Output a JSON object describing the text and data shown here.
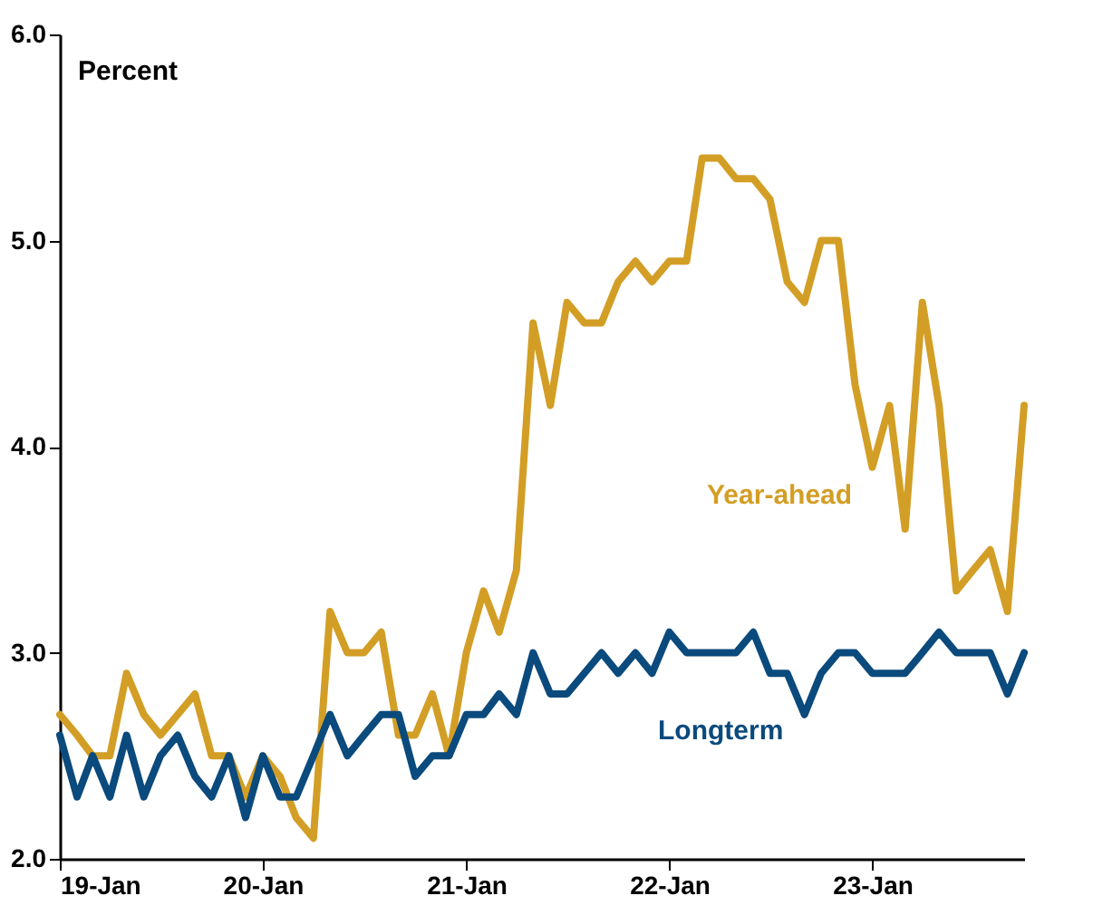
{
  "chart_data": {
    "type": "line",
    "ylabel": "Percent",
    "x": [
      "2019-01",
      "2019-02",
      "2019-03",
      "2019-04",
      "2019-05",
      "2019-06",
      "2019-07",
      "2019-08",
      "2019-09",
      "2019-10",
      "2019-11",
      "2019-12",
      "2020-01",
      "2020-02",
      "2020-03",
      "2020-04",
      "2020-05",
      "2020-06",
      "2020-07",
      "2020-08",
      "2020-09",
      "2020-10",
      "2020-11",
      "2020-12",
      "2021-01",
      "2021-02",
      "2021-03",
      "2021-04",
      "2021-05",
      "2021-06",
      "2021-07",
      "2021-08",
      "2021-09",
      "2021-10",
      "2021-11",
      "2021-12",
      "2022-01",
      "2022-02",
      "2022-03",
      "2022-04",
      "2022-05",
      "2022-06",
      "2022-07",
      "2022-08",
      "2022-09",
      "2022-10",
      "2022-11",
      "2022-12",
      "2023-01",
      "2023-02",
      "2023-03",
      "2023-04",
      "2023-05",
      "2023-06",
      "2023-07",
      "2023-08",
      "2023-09",
      "2023-10"
    ],
    "series": [
      {
        "name": "Year-ahead",
        "color": "#d39e25",
        "values": [
          2.7,
          2.6,
          2.5,
          2.5,
          2.9,
          2.7,
          2.6,
          2.7,
          2.8,
          2.5,
          2.5,
          2.3,
          2.5,
          2.4,
          2.2,
          2.1,
          3.2,
          3.0,
          3.0,
          3.1,
          2.6,
          2.6,
          2.8,
          2.5,
          3.0,
          3.3,
          3.1,
          3.4,
          4.6,
          4.2,
          4.7,
          4.6,
          4.6,
          4.8,
          4.9,
          4.8,
          4.9,
          4.9,
          5.4,
          5.4,
          5.3,
          5.3,
          5.2,
          4.8,
          4.7,
          5.0,
          5.0,
          4.3,
          3.9,
          4.2,
          3.6,
          4.7,
          4.2,
          3.3,
          3.4,
          3.5,
          3.2,
          4.2
        ]
      },
      {
        "name": "Longterm",
        "color": "#0b4a7d",
        "values": [
          2.6,
          2.3,
          2.5,
          2.3,
          2.6,
          2.3,
          2.5,
          2.6,
          2.4,
          2.3,
          2.5,
          2.2,
          2.5,
          2.3,
          2.3,
          2.5,
          2.7,
          2.5,
          2.6,
          2.7,
          2.7,
          2.4,
          2.5,
          2.5,
          2.7,
          2.7,
          2.8,
          2.7,
          3.0,
          2.8,
          2.8,
          2.9,
          3.0,
          2.9,
          3.0,
          2.9,
          3.1,
          3.0,
          3.0,
          3.0,
          3.0,
          3.1,
          2.9,
          2.9,
          2.7,
          2.9,
          3.0,
          3.0,
          2.9,
          2.9,
          2.9,
          3.0,
          3.1,
          3.0,
          3.0,
          3.0,
          2.8,
          3.0
        ]
      }
    ],
    "xlim": [
      "2019-01",
      "2023-10"
    ],
    "xticks": [
      {
        "value": "2019-01",
        "label": "19-Jan"
      },
      {
        "value": "2020-01",
        "label": "20-Jan"
      },
      {
        "value": "2021-01",
        "label": "21-Jan"
      },
      {
        "value": "2022-01",
        "label": "22-Jan"
      },
      {
        "value": "2023-01",
        "label": "23-Jan"
      }
    ],
    "ylim": [
      2.0,
      6.0
    ],
    "yticks": [
      {
        "value": 2.0,
        "label": "2.0"
      },
      {
        "value": 3.0,
        "label": "3.0"
      },
      {
        "value": 4.0,
        "label": "4.0"
      },
      {
        "value": 5.0,
        "label": "5.0"
      },
      {
        "value": 6.0,
        "label": "6.0"
      }
    ],
    "grid": false,
    "legend": false,
    "line_style": "solid",
    "marker": "none"
  }
}
